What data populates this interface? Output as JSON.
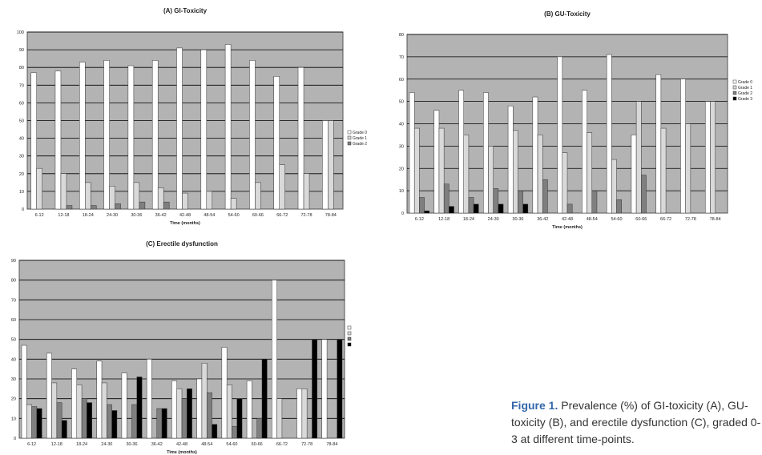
{
  "caption": {
    "label": "Figure 1.",
    "text": "Prevalence (%) of GI-toxicity (A), GU-toxicity (B), and erectile dysfunction (C), graded 0-3 at different time-points."
  },
  "colors": {
    "plot_bg": "#b3b3b3",
    "grid": "#000000",
    "grade0": "#ffffff",
    "grade1": "#d9d9d9",
    "grade2": "#7f7f7f",
    "grade3": "#000000"
  },
  "chart_data": [
    {
      "id": "panel-a",
      "type": "bar",
      "title": "(A) GI-Toxicity",
      "xlabel": "Time (months)",
      "ylabel": "",
      "ylim": [
        0,
        100
      ],
      "yticks": [
        0,
        10,
        20,
        30,
        40,
        50,
        60,
        70,
        80,
        90,
        100
      ],
      "grid": true,
      "legend": "right",
      "categories": [
        "6-12",
        "12-18",
        "18-24",
        "24-30",
        "30-36",
        "36-42",
        "42-48",
        "48-54",
        "54-60",
        "60-66",
        "66-72",
        "72-78",
        "78-84"
      ],
      "series": [
        {
          "name": "Grade 0",
          "values": [
            77,
            78,
            83,
            84,
            81,
            84,
            91,
            90,
            93,
            84,
            75,
            80,
            50
          ]
        },
        {
          "name": "Grade 1",
          "values": [
            23,
            20,
            15,
            13,
            15,
            12,
            9,
            10,
            6,
            15,
            25,
            20,
            50
          ]
        },
        {
          "name": "Grade 2",
          "values": [
            0,
            2,
            2,
            3,
            4,
            4,
            0,
            0,
            0,
            0,
            0,
            0,
            0
          ]
        }
      ]
    },
    {
      "id": "panel-b",
      "type": "bar",
      "title": "(B) GU-Toxicity",
      "xlabel": "Time (months)",
      "ylabel": "",
      "ylim": [
        0,
        80
      ],
      "yticks": [
        0,
        10,
        20,
        30,
        40,
        50,
        60,
        70,
        80
      ],
      "grid": true,
      "legend": "right",
      "categories": [
        "6-12",
        "12-18",
        "18-24",
        "24-30",
        "30-36",
        "36-42",
        "42-48",
        "48-54",
        "54-60",
        "60-66",
        "66-72",
        "72-78",
        "78-84"
      ],
      "series": [
        {
          "name": "Grade 0",
          "values": [
            54,
            46,
            55,
            54,
            48,
            52,
            70,
            55,
            71,
            35,
            62,
            60,
            50
          ]
        },
        {
          "name": "Grade 1",
          "values": [
            38,
            38,
            35,
            30,
            37,
            35,
            27,
            36,
            24,
            50,
            38,
            40,
            50
          ]
        },
        {
          "name": "Grade 2",
          "values": [
            7,
            13,
            7,
            11,
            10,
            15,
            4,
            10,
            6,
            17,
            0,
            0,
            0
          ]
        },
        {
          "name": "Grade 3",
          "values": [
            1,
            3,
            4,
            4,
            4,
            0,
            0,
            0,
            0,
            0,
            0,
            0,
            0
          ]
        }
      ]
    },
    {
      "id": "panel-c",
      "type": "bar",
      "title": "(C) Erectile dysfunction",
      "xlabel": "Time (months)",
      "ylabel": "",
      "ylim": [
        0,
        90
      ],
      "yticks": [
        0,
        10,
        20,
        30,
        40,
        50,
        60,
        70,
        80,
        90
      ],
      "grid": true,
      "legend": "right",
      "categories": [
        "6-12",
        "12-18",
        "18-24",
        "24-30",
        "30-36",
        "36-42",
        "42-48",
        "48-54",
        "54-60",
        "60-66",
        "66-72",
        "72-78",
        "78-84"
      ],
      "series": [
        {
          "name": "Grade 0",
          "values": [
            47,
            43,
            35,
            39,
            33,
            40,
            29,
            30,
            46,
            29,
            80,
            25,
            50
          ]
        },
        {
          "name": "Grade 1",
          "values": [
            17,
            28,
            27,
            28,
            0,
            0,
            25,
            38,
            27,
            0,
            20,
            25,
            0
          ]
        },
        {
          "name": "Grade 2",
          "values": [
            16,
            18,
            20,
            17,
            17,
            15,
            20,
            23,
            6,
            10,
            0,
            0,
            0
          ]
        },
        {
          "name": "Grade 3",
          "values": [
            15,
            9,
            18,
            14,
            31,
            15,
            25,
            7,
            20,
            40,
            0,
            50,
            50
          ]
        }
      ]
    }
  ]
}
